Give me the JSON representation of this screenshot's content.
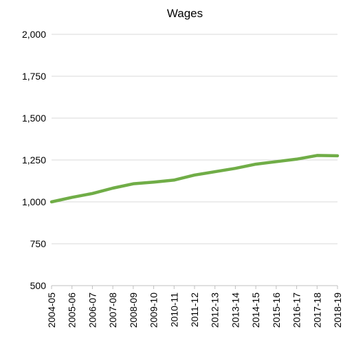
{
  "chart_data": {
    "type": "line",
    "title": "Wages",
    "xlabel": "",
    "ylabel": "",
    "ylim": [
      500,
      2000
    ],
    "yticks": [
      500,
      750,
      1000,
      1250,
      1500,
      1750,
      2000
    ],
    "ytick_labels": [
      "500",
      "750",
      "1,000",
      "1,250",
      "1,500",
      "1,750",
      "2,000"
    ],
    "categories": [
      "2004-05",
      "2005-06",
      "2006-07",
      "2007-08",
      "2008-09",
      "2009-10",
      "2010-11",
      "2011-12",
      "2012-13",
      "2013-14",
      "2014-15",
      "2015-16",
      "2016-17",
      "2017-18",
      "2018-19"
    ],
    "series": [
      {
        "values": [
          1000,
          1027,
          1050,
          1082,
          1108,
          1118,
          1130,
          1160,
          1180,
          1200,
          1225,
          1240,
          1255,
          1277,
          1275
        ],
        "color": "#70ad47"
      }
    ],
    "grid": true,
    "legend": "none"
  }
}
